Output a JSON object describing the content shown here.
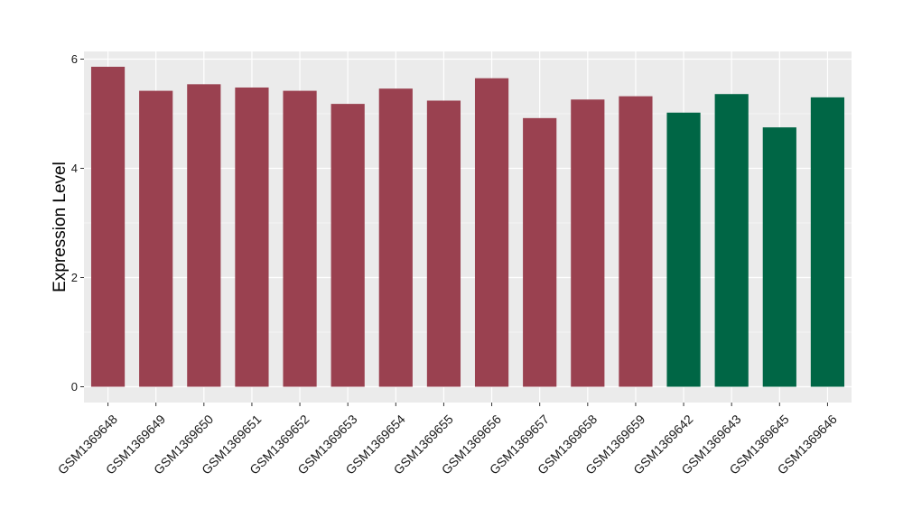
{
  "chart_data": {
    "type": "bar",
    "title": "",
    "xlabel": "",
    "ylabel": "Expression Level",
    "ylim": [
      0,
      6.3
    ],
    "yticks": [
      0,
      2,
      4,
      6
    ],
    "grid": true,
    "legend": "none",
    "categories": [
      "GSM1369648",
      "GSM1369649",
      "GSM1369650",
      "GSM1369651",
      "GSM1369652",
      "GSM1369653",
      "GSM1369654",
      "GSM1369655",
      "GSM1369656",
      "GSM1369657",
      "GSM1369658",
      "GSM1369659",
      "GSM1369642",
      "GSM1369643",
      "GSM1369645",
      "GSM1369646"
    ],
    "values": [
      5.86,
      5.42,
      5.54,
      5.48,
      5.42,
      5.18,
      5.46,
      5.24,
      5.65,
      4.92,
      5.26,
      5.32,
      5.02,
      5.36,
      4.75,
      5.3
    ],
    "groups": [
      0,
      0,
      0,
      0,
      0,
      0,
      0,
      0,
      0,
      0,
      0,
      0,
      1,
      1,
      1,
      1
    ],
    "group_colors": [
      "#9a4150",
      "#006645"
    ],
    "panel_background": "#ebebeb",
    "grid_color": "#ffffff"
  }
}
